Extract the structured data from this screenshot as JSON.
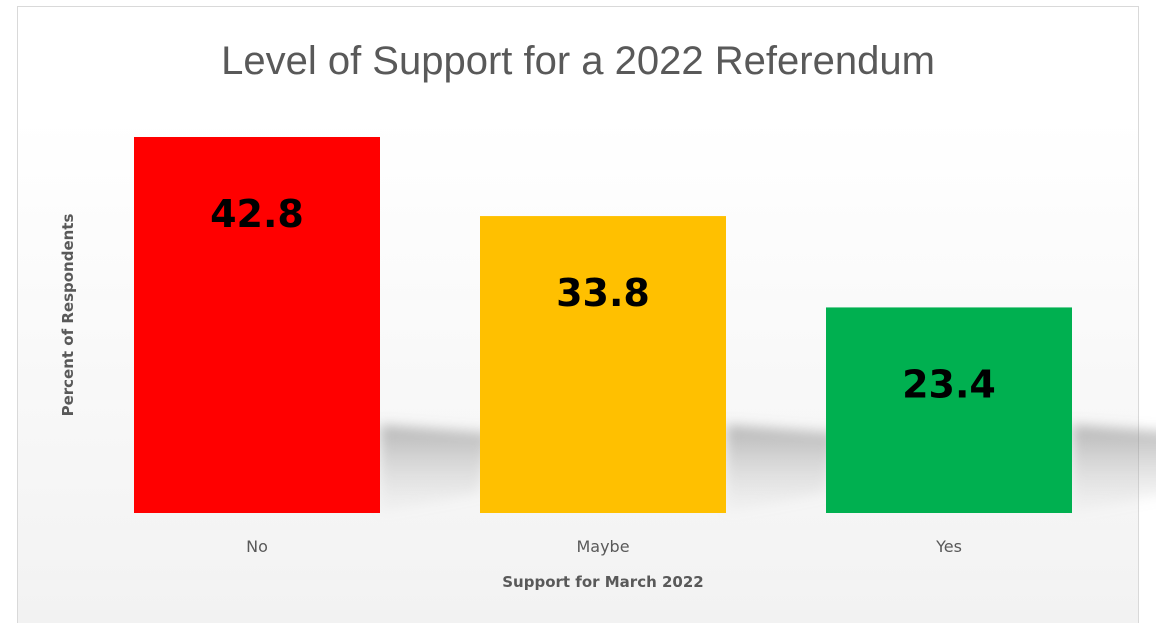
{
  "chart_data": {
    "type": "bar",
    "title": "Level of Support for a 2022 Referendum",
    "xlabel": "Support for March 2022",
    "ylabel": "Percent of Respondents",
    "categories": [
      "No",
      "Maybe",
      "Yes"
    ],
    "values": [
      42.8,
      33.8,
      23.4
    ],
    "value_labels": [
      "42.8",
      "33.8",
      "23.4"
    ],
    "colors": [
      "#FF0000",
      "#FFC000",
      "#00B050"
    ],
    "ylim": [
      0,
      42.8
    ],
    "grid": false,
    "legend": "none"
  }
}
